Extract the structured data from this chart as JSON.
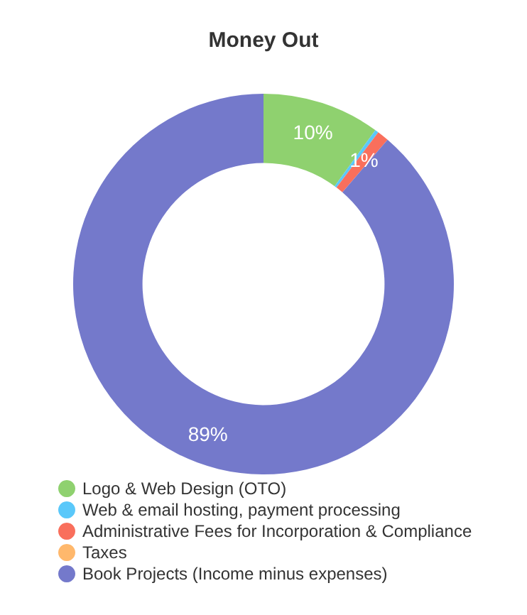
{
  "chart_data": {
    "type": "donut",
    "title": "Money Out",
    "categories": [
      "Logo & Web Design (OTO)",
      "Web & email hosting, payment processing",
      "Administrative Fees for Incorporation & Compliance",
      "Taxes",
      "Book Projects (Income minus expenses)"
    ],
    "values": [
      10,
      0.3,
      1,
      0,
      88.7
    ],
    "colors": [
      "#8fd16f",
      "#5ac8fa",
      "#f96f5c",
      "#ffb86c",
      "#7479cb"
    ],
    "value_labels": [
      "10%",
      null,
      "1%",
      null,
      "89%"
    ],
    "legend": "bottom left"
  }
}
